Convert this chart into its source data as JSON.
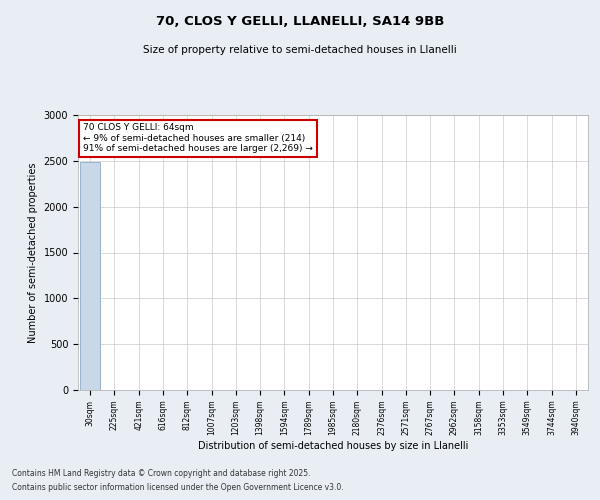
{
  "title": "70, CLOS Y GELLI, LLANELLI, SA14 9BB",
  "subtitle": "Size of property relative to semi-detached houses in Llanelli",
  "xlabel": "Distribution of semi-detached houses by size in Llanelli",
  "ylabel": "Number of semi-detached properties",
  "annotation_title": "70 CLOS Y GELLI: 64sqm",
  "annotation_line1": "← 9% of semi-detached houses are smaller (214)",
  "annotation_line2": "91% of semi-detached houses are larger (2,269) →",
  "footer_line1": "Contains HM Land Registry data © Crown copyright and database right 2025.",
  "footer_line2": "Contains public sector information licensed under the Open Government Licence v3.0.",
  "categories": [
    "30sqm",
    "225sqm",
    "421sqm",
    "616sqm",
    "812sqm",
    "1007sqm",
    "1203sqm",
    "1398sqm",
    "1594sqm",
    "1789sqm",
    "1985sqm",
    "2180sqm",
    "2376sqm",
    "2571sqm",
    "2767sqm",
    "2962sqm",
    "3158sqm",
    "3353sqm",
    "3549sqm",
    "3744sqm",
    "3940sqm"
  ],
  "values": [
    2483,
    2,
    1,
    1,
    0,
    0,
    0,
    0,
    0,
    0,
    0,
    0,
    0,
    0,
    0,
    0,
    0,
    0,
    0,
    0,
    0
  ],
  "bar_color": "#c8d8e8",
  "bar_edge_color": "#7aa0bb",
  "annotation_box_color": "#cc0000",
  "ylim": [
    0,
    3000
  ],
  "grid_color": "#cccccc",
  "bg_color": "#e8eef4",
  "plot_bg_color": "#ffffff"
}
